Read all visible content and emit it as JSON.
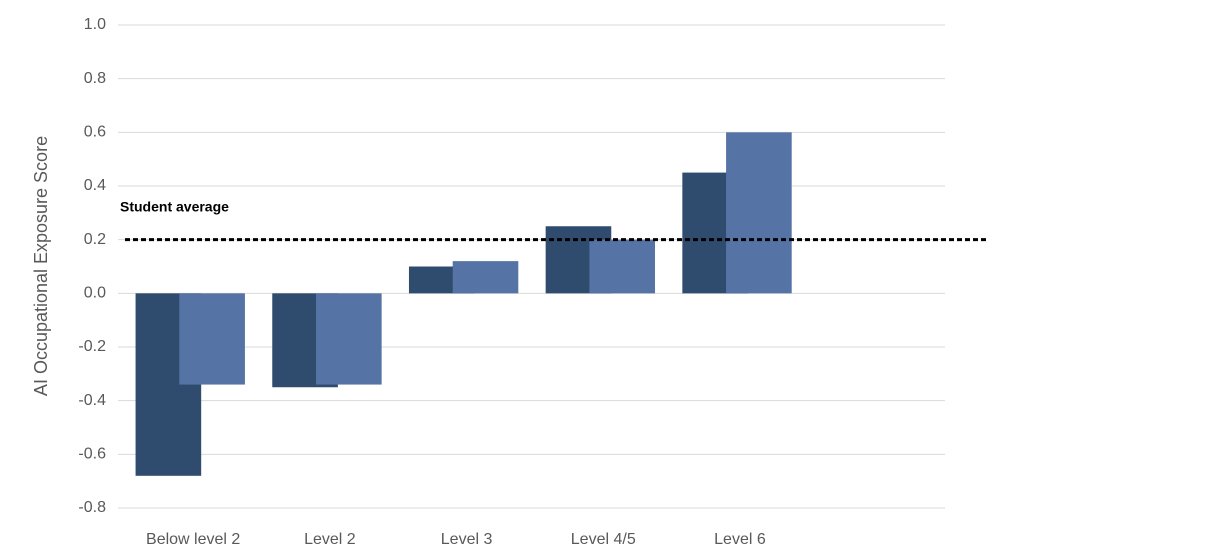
{
  "chart_data": {
    "type": "bar",
    "y_label": "AI Occupational Exposure Score",
    "categories": [
      "Below level 2",
      "Level 2",
      "Level 3",
      "Level 4/5",
      "Level 6"
    ],
    "series": [
      {
        "color": "#2f4b6e",
        "values": [
          -0.68,
          -0.35,
          0.1,
          0.25,
          0.45
        ]
      },
      {
        "color": "#5673a6",
        "values": [
          -0.34,
          -0.34,
          0.12,
          0.2,
          0.6
        ]
      }
    ],
    "reference_line": {
      "label": "Student average",
      "value": 0.2
    },
    "ylim": [
      -0.8,
      1.0
    ],
    "yticks": [
      {
        "value": -0.8,
        "label": "-0.8"
      },
      {
        "value": -0.6,
        "label": "-0.6"
      },
      {
        "value": -0.4,
        "label": "-0.4"
      },
      {
        "value": -0.2,
        "label": "-0.2"
      },
      {
        "value": 0,
        "label": "0.0"
      },
      {
        "value": 0.2,
        "label": "0.2"
      },
      {
        "value": 0.4,
        "label": "0.4"
      },
      {
        "value": 0.6,
        "label": "0.6"
      },
      {
        "value": 0.8,
        "label": "0.8"
      },
      {
        "value": 1,
        "label": "1.0"
      }
    ],
    "grid": true
  }
}
